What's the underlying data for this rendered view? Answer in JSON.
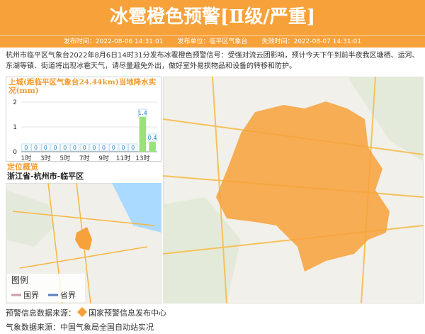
{
  "header": {
    "title": "冰雹橙色预警[Ⅱ级/严重]",
    "issue_time": "发布时间：2022-08-06 14:31:01",
    "issuer": "发布单位：临平区气象台",
    "expire_time": "失效时间：2022-08-07 14:31:01"
  },
  "description": "杭州市临平区气象台2022年8月6日14时31分发布冰雹橙色预警信号：受强对流云团影响，预计今天下午到前半夜我区塘栖、运河、东湖等镇、街道将出现冰雹天气，请尽量避免外出，做好室外易损物品和设备的转移和防护。",
  "chart_data": {
    "type": "bar",
    "title": "上城(距临平区气象台24.44km)当地降水实况(mm)",
    "categories": [
      "1时",
      null,
      "3时",
      null,
      "5时",
      null,
      "7时",
      null,
      "9时",
      null,
      "11时",
      null,
      "13时",
      null
    ],
    "values": [
      0,
      0,
      0,
      0,
      0,
      0,
      0,
      0,
      0,
      0,
      0,
      0,
      1.4,
      0.4
    ],
    "color": "#99e27a",
    "ylim": [
      0,
      2
    ],
    "yticks": [
      0,
      1,
      2
    ],
    "grid": true
  },
  "location": {
    "heading": "定位概览",
    "region": "浙江省-杭州市-临平区"
  },
  "legend": {
    "title": "图例",
    "items": [
      "国界",
      "省界"
    ]
  },
  "footer": {
    "warning_source_label": "预警信息数据来源：",
    "warning_source": "国家预警信息发布中心",
    "weather_source": "气象数据来源：中国气象局全国自动站实况"
  }
}
